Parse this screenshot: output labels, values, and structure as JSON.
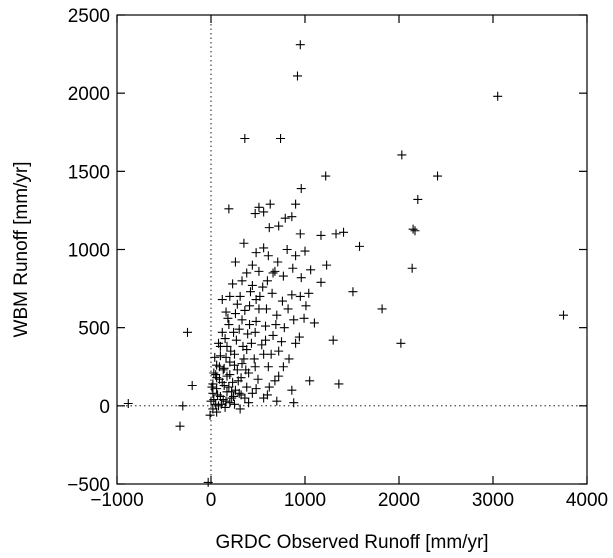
{
  "chart_data": {
    "type": "scatter",
    "title": "",
    "xlabel": "GRDC Observed Runoff [mm/yr]",
    "ylabel": "WBM Runoff [mm/yr]",
    "xlim": [
      -1000,
      4000
    ],
    "ylim": [
      -500,
      2500
    ],
    "xticks": [
      -1000,
      0,
      1000,
      2000,
      3000,
      4000
    ],
    "yticks": [
      -500,
      0,
      500,
      1000,
      1500,
      2000,
      2500
    ],
    "xtick_labels": [
      "−1000",
      "0",
      "1000",
      "2000",
      "3000",
      "4000"
    ],
    "ytick_labels": [
      "−500",
      "0",
      "500",
      "1000",
      "1500",
      "2000",
      "2500"
    ],
    "grid": false,
    "reference_lines": {
      "x": 0,
      "y": 0,
      "style": "dotted"
    },
    "marker": "+",
    "series": [
      {
        "points": [
          [
            950,
            2310
          ],
          [
            920,
            2110
          ],
          [
            3050,
            1980
          ],
          [
            360,
            1710
          ],
          [
            740,
            1710
          ],
          [
            2030,
            1605
          ],
          [
            1220,
            1470
          ],
          [
            2410,
            1470
          ],
          [
            960,
            1390
          ],
          [
            2200,
            1320
          ],
          [
            630,
            1290
          ],
          [
            510,
            1270
          ],
          [
            190,
            1260
          ],
          [
            560,
            1240
          ],
          [
            470,
            1230
          ],
          [
            900,
            1290
          ],
          [
            790,
            1200
          ],
          [
            860,
            1210
          ],
          [
            720,
            1150
          ],
          [
            620,
            1140
          ],
          [
            2150,
            1130
          ],
          [
            2170,
            1120
          ],
          [
            1410,
            1110
          ],
          [
            1330,
            1100
          ],
          [
            950,
            1100
          ],
          [
            1170,
            1090
          ],
          [
            350,
            1040
          ],
          [
            1580,
            1020
          ],
          [
            480,
            980
          ],
          [
            810,
            1000
          ],
          [
            1000,
            990
          ],
          [
            560,
            1010
          ],
          [
            900,
            960
          ],
          [
            610,
            960
          ],
          [
            260,
            920
          ],
          [
            710,
            920
          ],
          [
            1230,
            900
          ],
          [
            440,
            900
          ],
          [
            870,
            880
          ],
          [
            2140,
            880
          ],
          [
            1060,
            870
          ],
          [
            510,
            860
          ],
          [
            380,
            850
          ],
          [
            660,
            850
          ],
          [
            770,
            830
          ],
          [
            330,
            800
          ],
          [
            960,
            820
          ],
          [
            230,
            780
          ],
          [
            1170,
            790
          ],
          [
            440,
            770
          ],
          [
            550,
            760
          ],
          [
            1510,
            730
          ],
          [
            650,
            720
          ],
          [
            200,
            700
          ],
          [
            310,
            700
          ],
          [
            860,
            710
          ],
          [
            950,
            700
          ],
          [
            120,
            680
          ],
          [
            480,
            680
          ],
          [
            760,
            670
          ],
          [
            1010,
            640
          ],
          [
            410,
            640
          ],
          [
            590,
            620
          ],
          [
            1820,
            620
          ],
          [
            3750,
            580
          ],
          [
            160,
            600
          ],
          [
            260,
            590
          ],
          [
            700,
            580
          ],
          [
            880,
            550
          ],
          [
            330,
            550
          ],
          [
            480,
            540
          ],
          [
            1100,
            530
          ],
          [
            190,
            520
          ],
          [
            580,
            510
          ],
          [
            780,
            500
          ],
          [
            -250,
            470
          ],
          [
            120,
            470
          ],
          [
            390,
            460
          ],
          [
            660,
            450
          ],
          [
            940,
            440
          ],
          [
            270,
            420
          ],
          [
            1300,
            420
          ],
          [
            80,
            400
          ],
          [
            2020,
            400
          ],
          [
            540,
            390
          ],
          [
            170,
            380
          ],
          [
            380,
            360
          ],
          [
            720,
            350
          ],
          [
            250,
            330
          ],
          [
            100,
            320
          ],
          [
            460,
            300
          ],
          [
            830,
            300
          ],
          [
            200,
            280
          ],
          [
            330,
            270
          ],
          [
            60,
            260
          ],
          [
            610,
            250
          ],
          [
            140,
            240
          ],
          [
            280,
            230
          ],
          [
            400,
            210
          ],
          [
            50,
            200
          ],
          [
            720,
            190
          ],
          [
            170,
            190
          ],
          [
            320,
            180
          ],
          [
            90,
            170
          ],
          [
            500,
            170
          ],
          [
            1050,
            160
          ],
          [
            230,
            150
          ],
          [
            20,
            140
          ],
          [
            1360,
            140
          ],
          [
            -200,
            130
          ],
          [
            140,
            130
          ],
          [
            380,
            120
          ],
          [
            620,
            120
          ],
          [
            60,
            110
          ],
          [
            260,
            100
          ],
          [
            860,
            100
          ],
          [
            170,
            90
          ],
          [
            440,
            80
          ],
          [
            20,
            80
          ],
          [
            320,
            70
          ],
          [
            100,
            60
          ],
          [
            220,
            50
          ],
          [
            560,
            50
          ],
          [
            30,
            40
          ],
          [
            160,
            30
          ],
          [
            700,
            30
          ],
          [
            880,
            20
          ],
          [
            400,
            20
          ],
          [
            -880,
            15
          ],
          [
            250,
            10
          ],
          [
            80,
            0
          ],
          [
            -300,
            0
          ],
          [
            150,
            -10
          ],
          [
            20,
            -20
          ],
          [
            310,
            -20
          ],
          [
            60,
            -40
          ],
          [
            -10,
            -60
          ],
          [
            -330,
            -130
          ],
          [
            -30,
            -490
          ],
          [
            130,
            230
          ],
          [
            210,
            350
          ],
          [
            300,
            490
          ],
          [
            360,
            610
          ],
          [
            420,
            730
          ],
          [
            240,
            470
          ],
          [
            180,
            560
          ],
          [
            100,
            380
          ],
          [
            40,
            310
          ],
          [
            280,
            650
          ],
          [
            150,
            430
          ],
          [
            350,
            300
          ],
          [
            430,
            400
          ],
          [
            510,
            620
          ],
          [
            290,
            160
          ],
          [
            220,
            90
          ],
          [
            370,
            230
          ],
          [
            470,
            470
          ],
          [
            580,
            420
          ],
          [
            640,
            330
          ],
          [
            690,
            520
          ],
          [
            750,
            410
          ],
          [
            820,
            620
          ],
          [
            160,
            310
          ],
          [
            60,
            180
          ],
          [
            120,
            150
          ],
          [
            200,
            200
          ],
          [
            250,
            260
          ],
          [
            340,
            380
          ],
          [
            410,
            520
          ],
          [
            520,
            700
          ],
          [
            600,
            800
          ],
          [
            680,
            860
          ],
          [
            560,
            330
          ],
          [
            470,
            250
          ],
          [
            90,
            250
          ],
          [
            30,
            210
          ],
          [
            10,
            120
          ],
          [
            70,
            70
          ],
          [
            130,
            40
          ],
          [
            190,
            120
          ],
          [
            240,
            60
          ],
          [
            360,
            50
          ],
          [
            480,
            110
          ],
          [
            600,
            70
          ],
          [
            680,
            160
          ],
          [
            770,
            250
          ],
          [
            900,
            400
          ],
          [
            990,
            560
          ],
          [
            1040,
            720
          ],
          [
            300,
            80
          ],
          [
            200,
            20
          ],
          [
            110,
            10
          ],
          [
            50,
            10
          ],
          [
            0,
            30
          ]
        ]
      }
    ]
  }
}
